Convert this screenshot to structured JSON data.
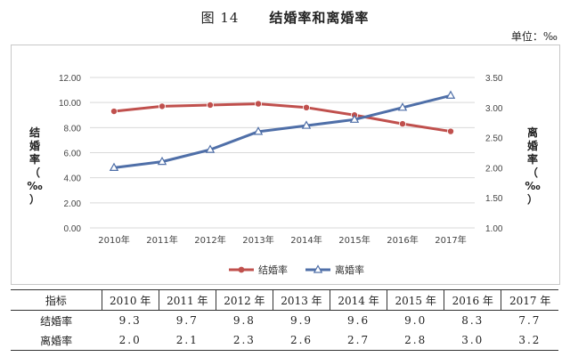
{
  "figure": {
    "number": "图 14",
    "title": "结婚率和离婚率",
    "unit": "单位：‰"
  },
  "chart_data": {
    "type": "line",
    "categories": [
      "2010年",
      "2011年",
      "2012年",
      "2013年",
      "2014年",
      "2015年",
      "2016年",
      "2017年"
    ],
    "series": [
      {
        "name": "结婚率",
        "axis": "left",
        "values": [
          9.3,
          9.7,
          9.8,
          9.9,
          9.6,
          9.0,
          8.3,
          7.7
        ],
        "color": "#c0504d",
        "marker": "circle"
      },
      {
        "name": "离婚率",
        "axis": "right",
        "values": [
          2.0,
          2.1,
          2.3,
          2.6,
          2.7,
          2.8,
          3.0,
          3.2
        ],
        "color": "#4f6fa8",
        "marker": "triangle"
      }
    ],
    "y_left": {
      "label": "结婚率（‰）",
      "min": 0,
      "max": 12,
      "ticks": [
        "0.00",
        "2.00",
        "4.00",
        "6.00",
        "8.00",
        "10.00",
        "12.00"
      ],
      "ylim": [
        0,
        12
      ]
    },
    "y_right": {
      "label": "离婚率（‰）",
      "min": 1.0,
      "max": 3.5,
      "ticks": [
        "1.00",
        "1.50",
        "2.00",
        "2.50",
        "3.00",
        "3.50"
      ],
      "ylim": [
        1.0,
        3.5
      ]
    },
    "grid": true,
    "legend": "bottom-center"
  },
  "table": {
    "header_label": "指标",
    "years": [
      "2010 年",
      "2011 年",
      "2012 年",
      "2013 年",
      "2014 年",
      "2015 年",
      "2016 年",
      "2017 年"
    ],
    "rows": [
      {
        "label": "结婚率",
        "values": [
          "9.3",
          "9.7",
          "9.8",
          "9.9",
          "9.6",
          "9.0",
          "8.3",
          "7.7"
        ]
      },
      {
        "label": "离婚率",
        "values": [
          "2.0",
          "2.1",
          "2.3",
          "2.6",
          "2.7",
          "2.8",
          "3.0",
          "3.2"
        ]
      }
    ]
  },
  "colors": {
    "marriage": "#c0504d",
    "divorce": "#4f6fa8",
    "grid": "#d9d9d9"
  }
}
